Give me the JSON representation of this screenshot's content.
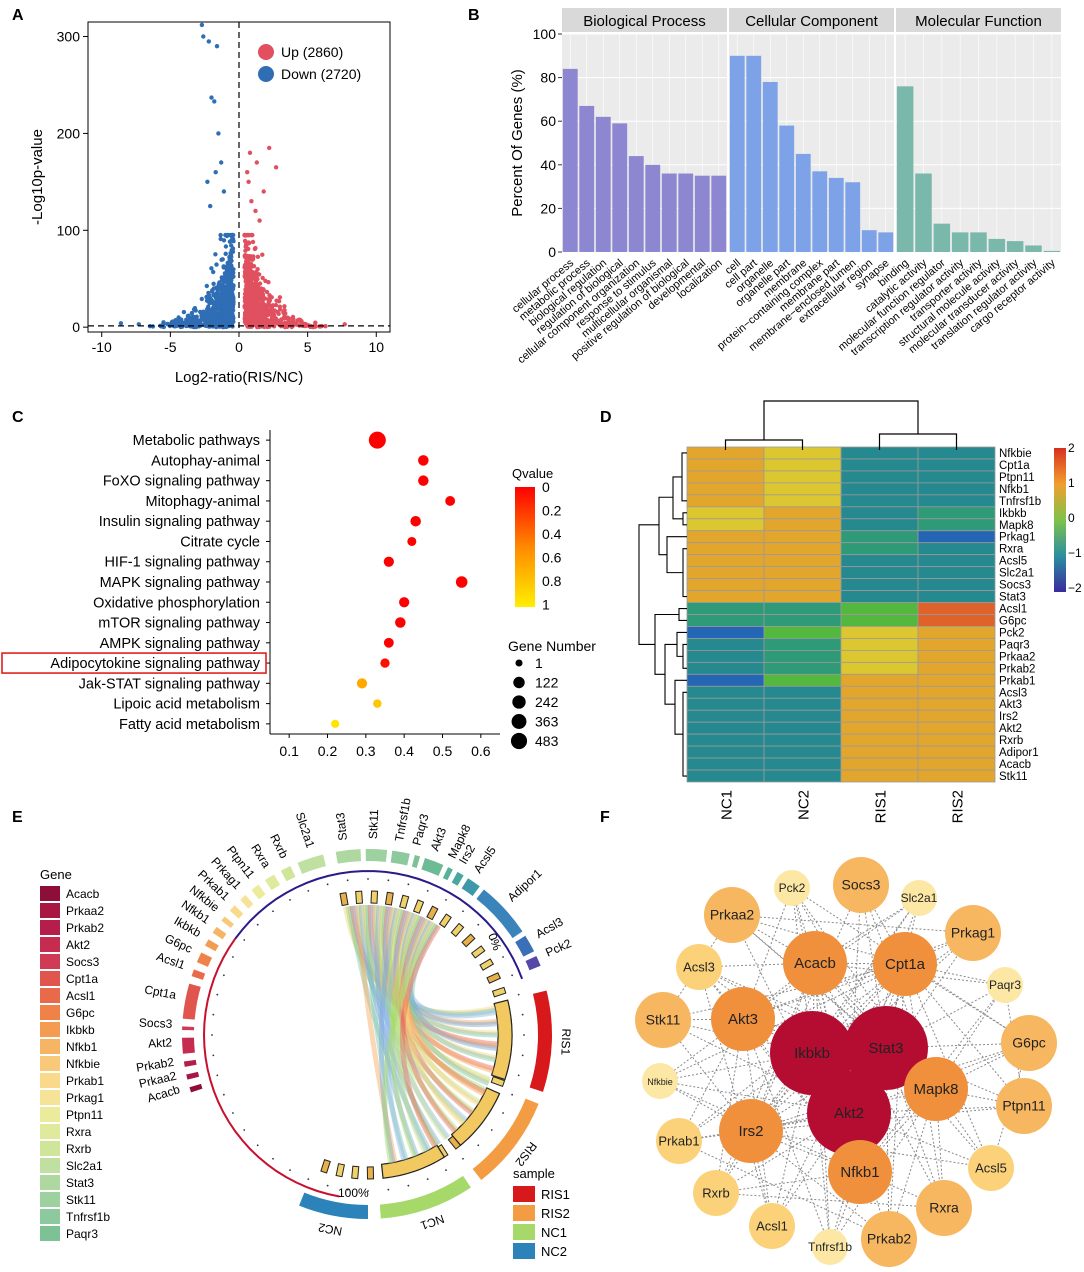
{
  "panel_labels": [
    "A",
    "B",
    "C",
    "D",
    "E",
    "F"
  ],
  "colors": {
    "up": "#e0505f",
    "down": "#2f6db5",
    "bp": "#8d86d0",
    "cc": "#7ea2e8",
    "mf": "#7ab8ab",
    "facet_strip": "#d9d9d9",
    "panel_bg": "#ebebeb",
    "highlight_box": "#e02020",
    "node_high": "#b50d32",
    "node_mid": "#f0903c",
    "node_low": "#f7b660",
    "node_lower": "#fbd27a",
    "node_lowest": "#fde7a4",
    "edge": "#8a8a8a"
  },
  "chart_data": [
    {
      "panel": "A",
      "type": "scatter",
      "title": "",
      "xlabel": "Log2-ratio(RIS/NC)",
      "ylabel": "-Log10p-value",
      "xlim": [
        -11,
        11
      ],
      "ylim": [
        -5,
        315
      ],
      "xticks": [
        -10,
        -5,
        0,
        5,
        10
      ],
      "yticks": [
        0,
        100,
        200,
        300
      ],
      "threshold_lines": {
        "x": 0,
        "y": 1.3
      },
      "legend": [
        {
          "name": "Up (2860)",
          "color": "#e0505f"
        },
        {
          "name": "Down (2720)",
          "color": "#2f6db5"
        }
      ],
      "legend_position": "top-right"
    },
    {
      "panel": "B",
      "type": "bar",
      "ylabel": "Percent Of Genes (%)",
      "ylim": [
        0,
        100
      ],
      "yticks": [
        0,
        20,
        40,
        60,
        80,
        100
      ],
      "facets": [
        {
          "name": "Biological Process",
          "color": "#8d86d0",
          "categories": [
            "cellular process",
            "metabolic process",
            "biological regulation",
            "regulation of biological",
            "cellular component organization",
            "response to stimulus",
            "multicellular organismal",
            "positive regulation of biological",
            "developmental",
            "localization"
          ],
          "values": [
            84,
            67,
            62,
            59,
            44,
            40,
            36,
            36,
            35,
            35
          ]
        },
        {
          "name": "Cellular Component",
          "color": "#7ea2e8",
          "categories": [
            "cell",
            "cell part",
            "organelle",
            "organelle part",
            "membrane",
            "protein−containing complex",
            "membrane part",
            "membrane−enclosed lumen",
            "extracellular region",
            "synapse"
          ],
          "values": [
            90,
            90,
            78,
            58,
            45,
            37,
            34,
            32,
            10,
            9
          ]
        },
        {
          "name": "Molecular Function",
          "color": "#7ab8ab",
          "categories": [
            "binding",
            "catalytic activity",
            "molecular function regulator",
            "transcription regulator activity",
            "transporter activity",
            "structural molecule activity",
            "molecular transducer activity",
            "translation regulator activity",
            "cargo receptor activity"
          ],
          "values": [
            76,
            36,
            13,
            9,
            9,
            6,
            5,
            3,
            0.5
          ]
        }
      ]
    },
    {
      "panel": "C",
      "type": "scatter",
      "xlabel": "",
      "xlim": [
        0.05,
        0.65
      ],
      "xticks": [
        0.1,
        0.2,
        0.3,
        0.4,
        0.5,
        0.6
      ],
      "categories": [
        "Metabolic pathways",
        "Autophay-animal",
        "FoXO signaling pathway",
        "Mitophagy-animal",
        "Insulin signaling pathway",
        "Citrate cycle",
        "HIF-1 signaling pathway",
        "MAPK signaling pathway",
        "Oxidative phosphorylation",
        "mTOR signaling pathway",
        "AMPK signaling pathway",
        "Adipocytokine signaling pathway",
        "Jak-STAT signaling pathway",
        "Lipoic acid metabolism",
        "Fatty acid metabolism"
      ],
      "x": [
        0.33,
        0.45,
        0.45,
        0.52,
        0.43,
        0.42,
        0.36,
        0.55,
        0.4,
        0.39,
        0.36,
        0.35,
        0.29,
        0.33,
        0.22
      ],
      "qvalue": [
        0,
        0,
        0,
        0,
        0,
        0,
        0,
        0,
        0,
        0,
        0,
        0.05,
        0.65,
        0.8,
        0.95
      ],
      "gene_number": [
        483,
        60,
        60,
        40,
        60,
        20,
        50,
        100,
        50,
        60,
        40,
        25,
        50,
        10,
        6
      ],
      "highlight": "Adipocytokine signaling pathway",
      "color_legend": {
        "title": "Qvalue",
        "ticks": [
          "0",
          "0.2",
          "0.4",
          "0.6",
          "0.8",
          "1"
        ]
      },
      "size_legend": {
        "title": "Gene Number",
        "ticks": [
          "1",
          "122",
          "242",
          "363",
          "483"
        ]
      }
    },
    {
      "panel": "D",
      "type": "heatmap",
      "columns": [
        "NC1",
        "NC2",
        "RIS1",
        "RIS2"
      ],
      "rows": [
        "Nfkbie",
        "Cpt1a",
        "Ptpn11",
        "Nfkb1",
        "Tnfrsf1b",
        "Ikbkb",
        "Mapk8",
        "Prkag1",
        "Rxra",
        "Acsl5",
        "Slc2a1",
        "Socs3",
        "Stat3",
        "Acsl1",
        "G6pc",
        "Pck2",
        "Paqr3",
        "Prkaa2",
        "Prkab2",
        "Prkab1",
        "Acsl3",
        "Akt3",
        "Irs2",
        "Akt2",
        "Rxrb",
        "Adipor1",
        "Acacb",
        "Stk11"
      ],
      "values": [
        [
          0.7,
          0.5,
          -0.7,
          -0.6
        ],
        [
          0.7,
          0.5,
          -0.7,
          -0.6
        ],
        [
          0.7,
          0.5,
          -0.7,
          -0.6
        ],
        [
          0.7,
          0.5,
          -0.7,
          -0.6
        ],
        [
          0.7,
          0.5,
          -0.7,
          -0.6
        ],
        [
          0.4,
          0.8,
          -0.7,
          -0.4
        ],
        [
          0.4,
          0.8,
          -0.7,
          -0.4
        ],
        [
          0.6,
          0.6,
          -0.4,
          -0.9
        ],
        [
          0.6,
          0.6,
          -0.5,
          -0.7
        ],
        [
          0.6,
          0.6,
          -0.6,
          -0.6
        ],
        [
          0.6,
          0.6,
          -0.6,
          -0.6
        ],
        [
          0.6,
          0.6,
          -0.6,
          -0.6
        ],
        [
          0.6,
          0.6,
          -0.6,
          -0.6
        ],
        [
          -0.4,
          -0.4,
          -0.2,
          1.1
        ],
        [
          -0.4,
          -0.4,
          -0.2,
          1.2
        ],
        [
          -1.0,
          -0.2,
          0.4,
          0.7
        ],
        [
          -0.6,
          -0.5,
          0.5,
          0.6
        ],
        [
          -0.6,
          -0.5,
          0.5,
          0.6
        ],
        [
          -0.6,
          -0.5,
          0.5,
          0.6
        ],
        [
          -1.0,
          -0.3,
          0.7,
          0.6
        ],
        [
          -0.7,
          -0.6,
          0.7,
          0.6
        ],
        [
          -0.7,
          -0.6,
          0.7,
          0.6
        ],
        [
          -0.7,
          -0.6,
          0.7,
          0.6
        ],
        [
          -0.7,
          -0.6,
          0.7,
          0.6
        ],
        [
          -0.7,
          -0.6,
          0.7,
          0.6
        ],
        [
          -0.7,
          -0.6,
          0.7,
          0.6
        ],
        [
          -0.7,
          -0.6,
          0.7,
          0.6
        ],
        [
          -0.7,
          -0.6,
          0.7,
          0.6
        ]
      ],
      "color_scale": {
        "min": -2,
        "max": 2,
        "ticks": [
          2,
          1,
          0,
          -1,
          -2
        ],
        "tick_labels": [
          "2",
          "1",
          "0",
          "−1",
          "−2"
        ]
      }
    },
    {
      "panel": "E",
      "type": "chord",
      "gene_legend_title": "Gene",
      "genes": [
        "Acacb",
        "Prkaa2",
        "Prkab2",
        "Akt2",
        "Socs3",
        "Cpt1a",
        "Acsl1",
        "G6pc",
        "Ikbkb",
        "Nfkb1",
        "Nfkbie",
        "Prkab1",
        "Prkag1",
        "Ptpn11",
        "Rxra",
        "Rxrb",
        "Slc2a1",
        "Stat3",
        "Stk11",
        "Tnfrsf1b",
        "Paqr3"
      ],
      "gene_colors": [
        "#8e0e3a",
        "#a81643",
        "#b51e4a",
        "#c52c50",
        "#d03a55",
        "#e0554e",
        "#e96a4a",
        "#ef8248",
        "#f39c52",
        "#f6b565",
        "#f8c978",
        "#f9d98a",
        "#f5e397",
        "#ecea9b",
        "#dfea9c",
        "#cfe59a",
        "#bfe0a0",
        "#aed8a0",
        "#9dd19f",
        "#8cc99d",
        "#7cc294"
      ],
      "ring_genes": [
        "Stat3",
        "Stk11",
        "Tnfrsf1b",
        "Paqr3",
        "Akt3",
        "Mapk8",
        "Irs2",
        "Acsl5",
        "Adipor1",
        "Acsl3",
        "Pck2",
        "Slc2a1",
        "Rxrb",
        "Rxra",
        "Ptpn11",
        "Prkag1",
        "Prkab1",
        "Nfkbie",
        "Nfkb1",
        "Ikbkb",
        "G6pc",
        "Acsl1",
        "Cpt1a",
        "Socs3",
        "Akt2",
        "Prkab2",
        "Prkaa2",
        "Acacb"
      ],
      "percent_labels": [
        "0%",
        "100%"
      ],
      "sample_legend_title": "sample",
      "samples": [
        {
          "name": "RIS1",
          "color": "#d7191c"
        },
        {
          "name": "RIS2",
          "color": "#f39c44"
        },
        {
          "name": "NC1",
          "color": "#a6d96a"
        },
        {
          "name": "NC2",
          "color": "#2b83ba"
        }
      ]
    },
    {
      "panel": "F",
      "type": "network",
      "nodes": [
        {
          "name": "Pck2",
          "degree": 1
        },
        {
          "name": "Socs3",
          "degree": 3
        },
        {
          "name": "Slc2a1",
          "degree": 1
        },
        {
          "name": "Prkaa2",
          "degree": 3
        },
        {
          "name": "Prkag1",
          "degree": 3
        },
        {
          "name": "Acsl3",
          "degree": 2
        },
        {
          "name": "Acacb",
          "degree": 4
        },
        {
          "name": "Cpt1a",
          "degree": 4
        },
        {
          "name": "Paqr3",
          "degree": 1
        },
        {
          "name": "Stk11",
          "degree": 3
        },
        {
          "name": "Akt3",
          "degree": 4
        },
        {
          "name": "G6pc",
          "degree": 3
        },
        {
          "name": "Ikbkb",
          "degree": 5
        },
        {
          "name": "Stat3",
          "degree": 5
        },
        {
          "name": "Nfkbie",
          "degree": 1
        },
        {
          "name": "Mapk8",
          "degree": 4
        },
        {
          "name": "Ptpn11",
          "degree": 3
        },
        {
          "name": "Akt2",
          "degree": 5
        },
        {
          "name": "Irs2",
          "degree": 4
        },
        {
          "name": "Prkab1",
          "degree": 2
        },
        {
          "name": "Nfkb1",
          "degree": 4
        },
        {
          "name": "Acsl5",
          "degree": 2
        },
        {
          "name": "Rxrb",
          "degree": 2
        },
        {
          "name": "Rxra",
          "degree": 3
        },
        {
          "name": "Acsl1",
          "degree": 2
        },
        {
          "name": "Tnfrsf1b",
          "degree": 1
        },
        {
          "name": "Prkab2",
          "degree": 3
        }
      ]
    }
  ]
}
